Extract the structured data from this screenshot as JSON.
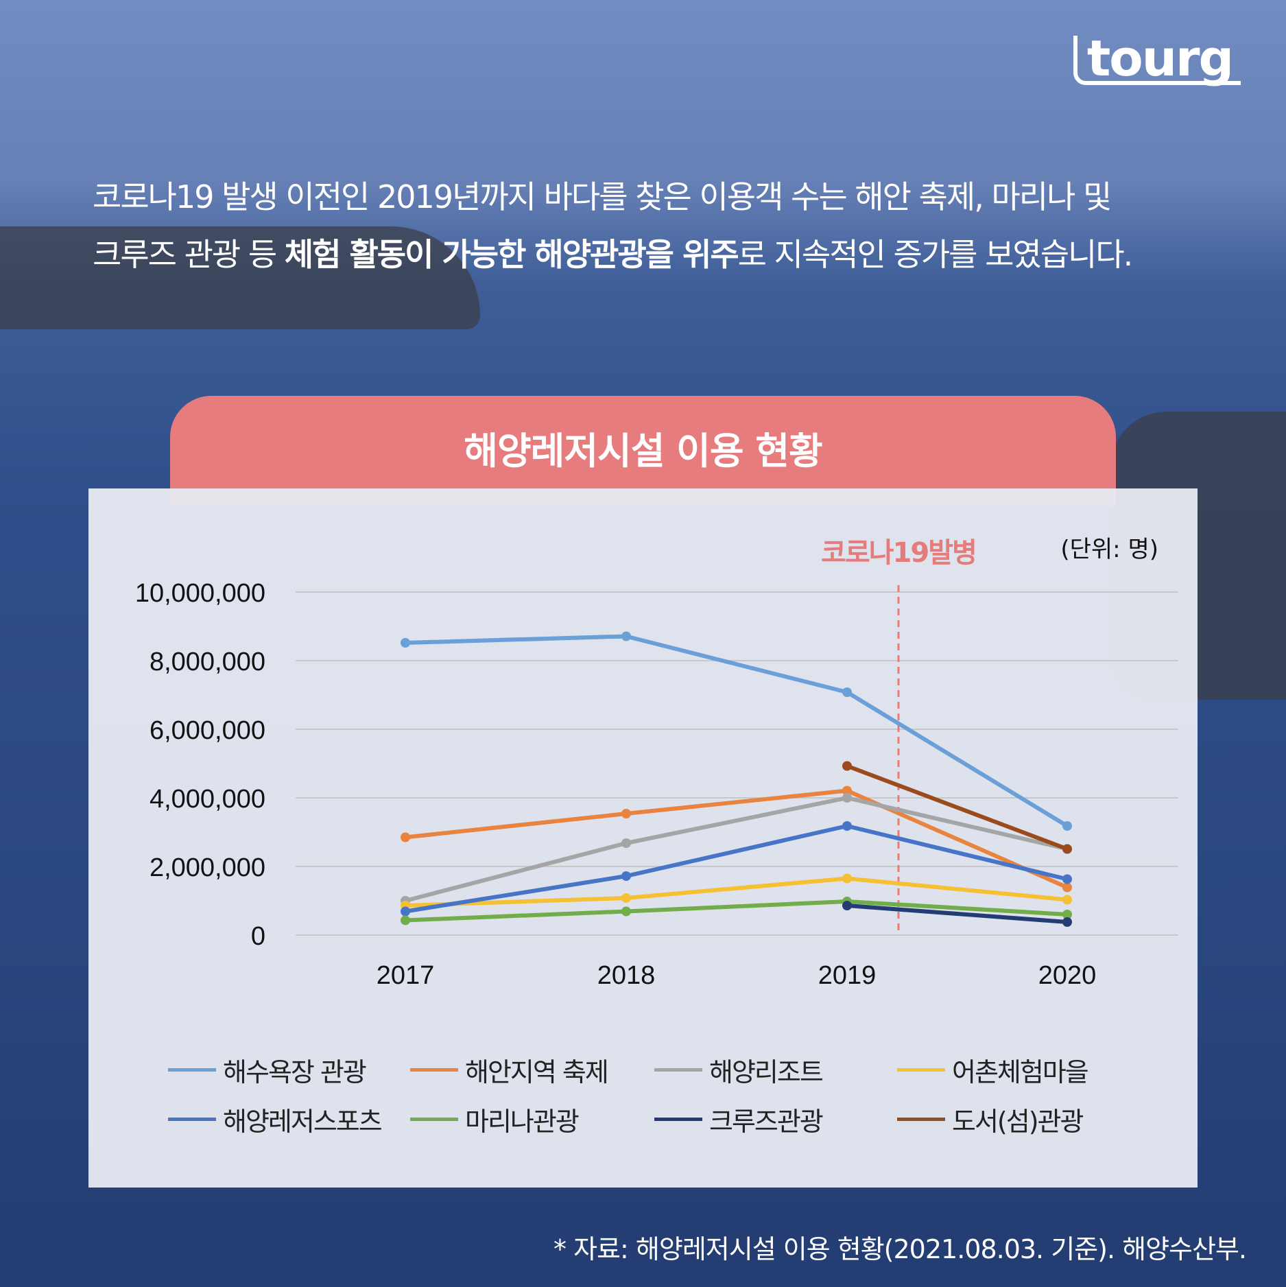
{
  "logo": "tourg",
  "intro": {
    "line1": "코로나19 발생 이전인 2019년까지 바다를 찾은 이용객 수는 해안 축제, 마리나 및",
    "line2_pre": "크루즈 관광 등 ",
    "line2_bold": "체험 활동이 가능한 해양관광을 위주",
    "line2_post": "로 지속적인 증가를 보였습니다."
  },
  "footer": "* 자료: 해양레저시설 이용 현황(2021.08.03. 기준). 해양수산부.",
  "chart_data": {
    "type": "line",
    "title": "해양레저시설 이용 현황",
    "unit_label": "(단위: 명)",
    "annotation": {
      "label": "코로나19발병",
      "between": [
        "2019",
        "2020"
      ],
      "color": "#e57b7b"
    },
    "categories": [
      "2017",
      "2018",
      "2019",
      "2020"
    ],
    "ylim": [
      0,
      10000000
    ],
    "yticks": [
      0,
      2000000,
      4000000,
      6000000,
      8000000,
      10000000
    ],
    "ytick_labels": [
      "0",
      "2,000,000",
      "4,000,000",
      "6,000,000",
      "8,000,000",
      "10,000,000"
    ],
    "grid": true,
    "legend_placement": "bottom",
    "series": [
      {
        "name": "해수욕장 관광",
        "color": "#6a9fd8",
        "values": [
          8520000,
          8710000,
          7080000,
          3180000
        ]
      },
      {
        "name": "해안지역 축제",
        "color": "#e8843f",
        "values": [
          2850000,
          3540000,
          4210000,
          1390000
        ]
      },
      {
        "name": "해양리조트",
        "color": "#a5a5a5",
        "values": [
          1000000,
          2680000,
          4000000,
          2510000
        ]
      },
      {
        "name": "어촌체험마을",
        "color": "#f5c033",
        "values": [
          860000,
          1080000,
          1650000,
          1030000
        ]
      },
      {
        "name": "해양레저스포츠",
        "color": "#4774c6",
        "values": [
          690000,
          1720000,
          3180000,
          1630000
        ]
      },
      {
        "name": "마리나관광",
        "color": "#72ad4b",
        "values": [
          430000,
          690000,
          980000,
          600000
        ]
      },
      {
        "name": "크루즈관광",
        "color": "#233d74",
        "values": [
          null,
          null,
          860000,
          380000
        ]
      },
      {
        "name": "도서(섬)관광",
        "color": "#9b4a1c",
        "values": [
          null,
          null,
          4930000,
          2510000
        ]
      }
    ]
  }
}
